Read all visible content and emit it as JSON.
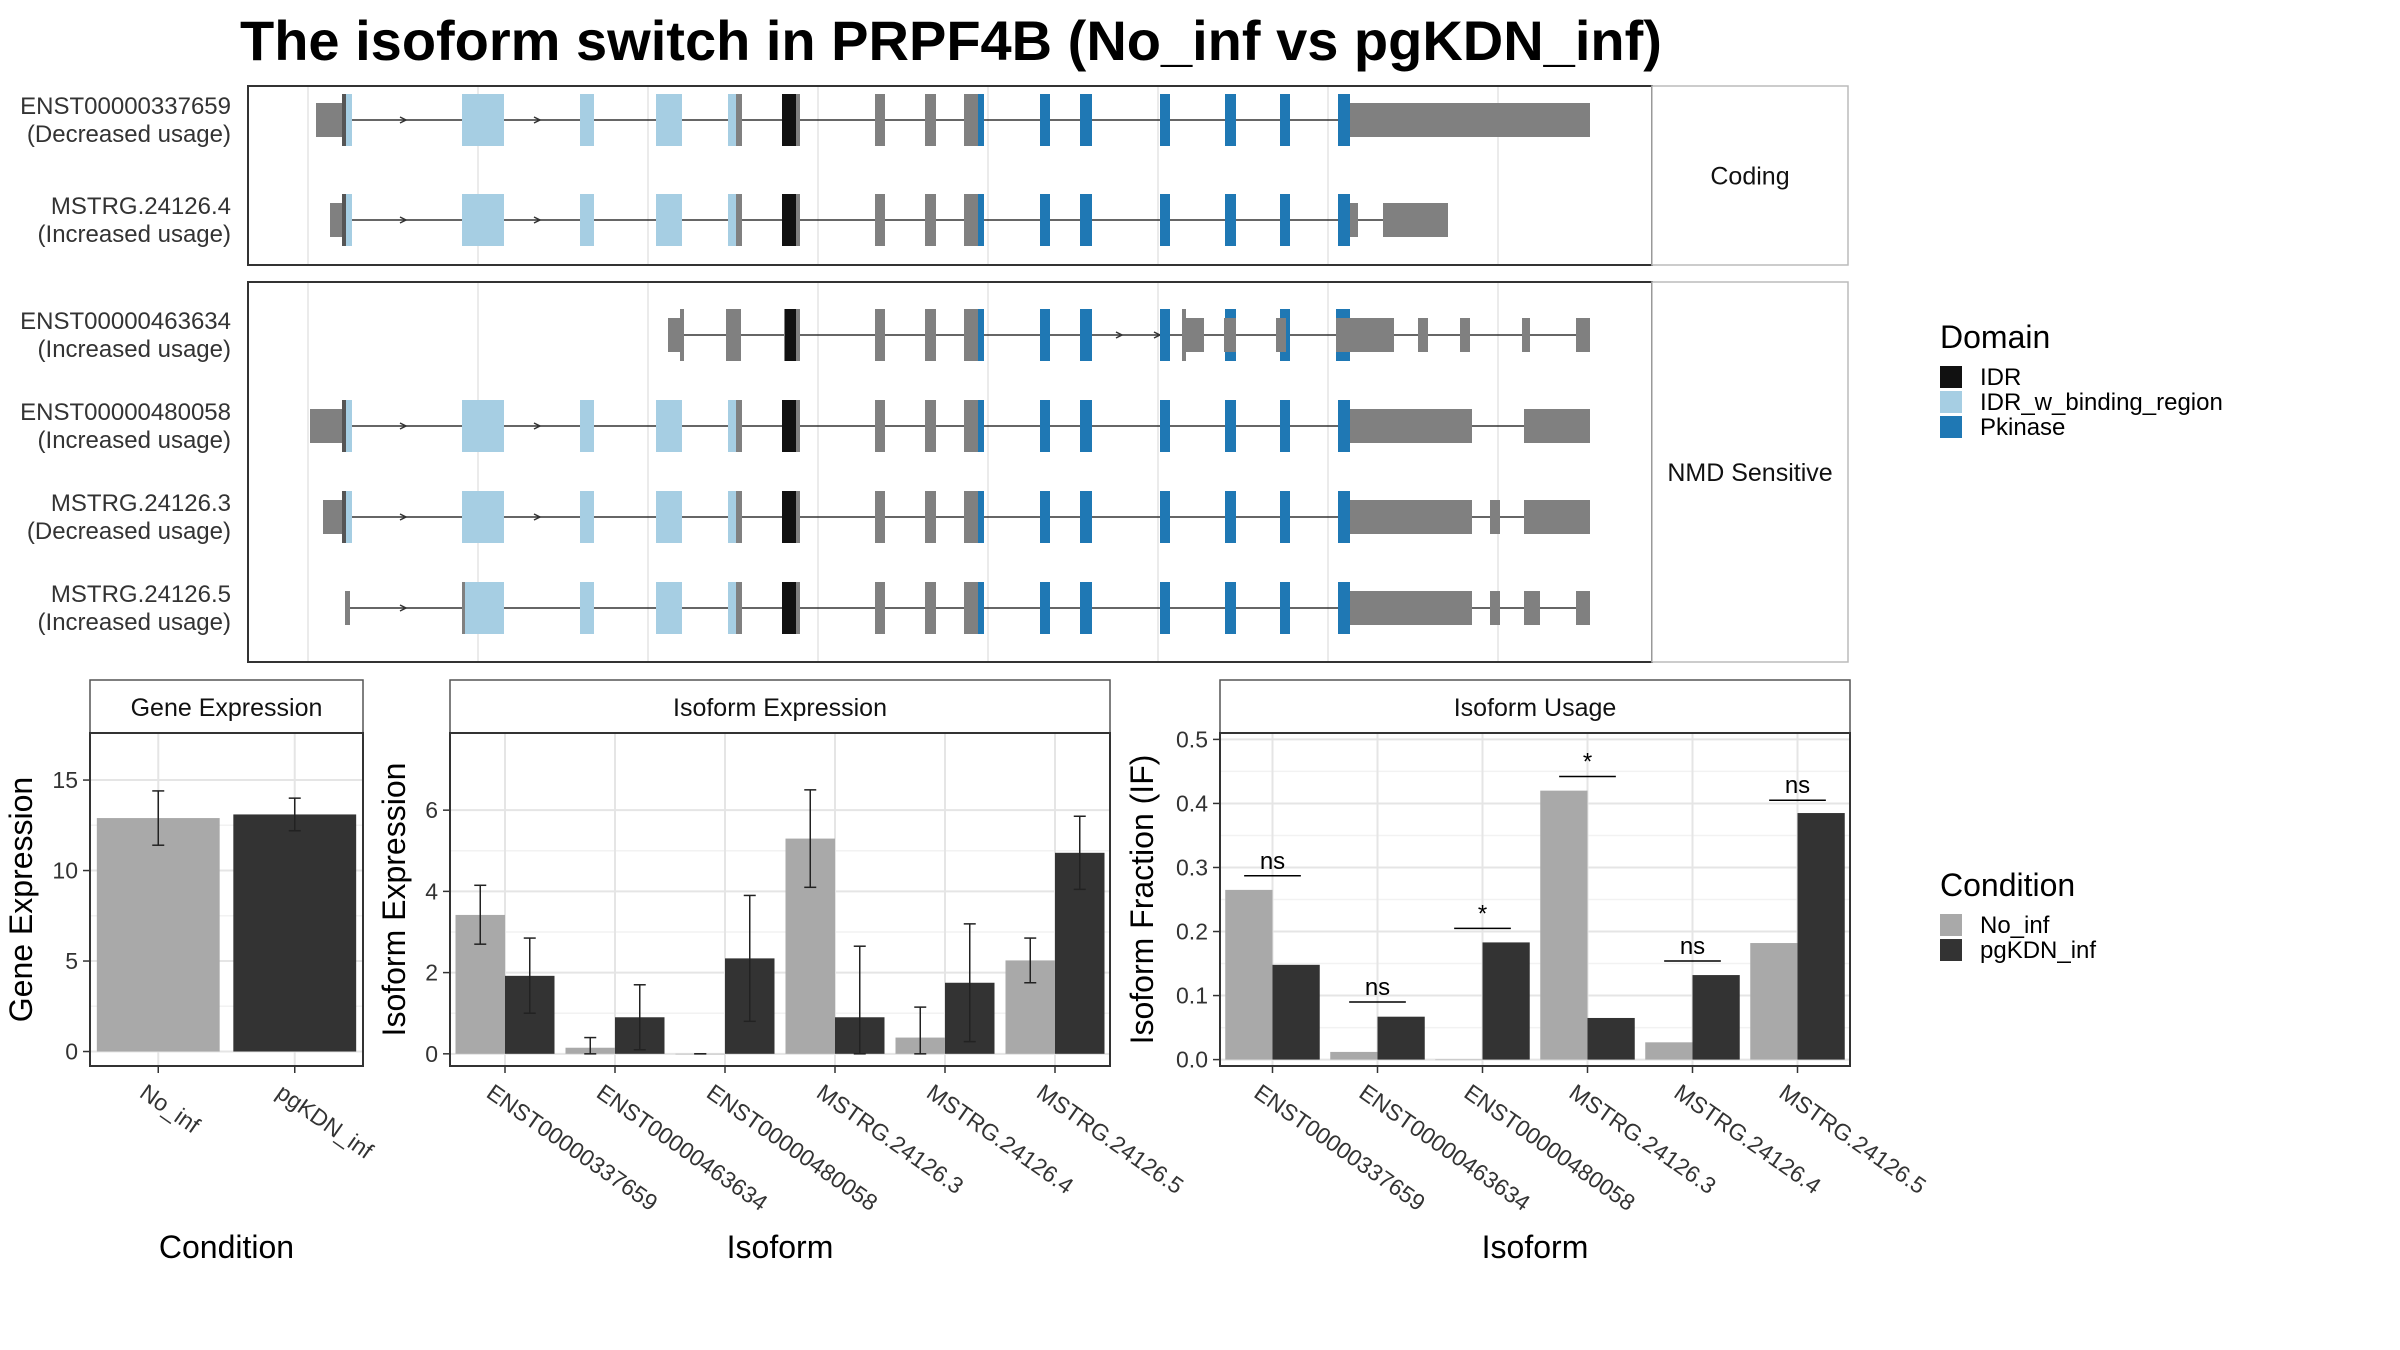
{
  "title": "The isoform switch in PRPF4B (No_inf vs pgKDN_inf)",
  "colors": {
    "IDR": "#111111",
    "IDR_w_binding_region": "#a6cee3",
    "Pkinase": "#1f78b4",
    "exon": "#808080",
    "No_inf": "#a9a9a9",
    "pgKDN_inf": "#333333"
  },
  "gene_structure": {
    "panels": [
      {
        "label": "Coding",
        "isoforms": [
          {
            "id": "ENST00000337659",
            "usage": "(Decreased usage)",
            "variant": "A"
          },
          {
            "id": "MSTRG.24126.4",
            "usage": "(Increased usage)",
            "variant": "B"
          }
        ]
      },
      {
        "label": "NMD Sensitive",
        "isoforms": [
          {
            "id": "ENST00000463634",
            "usage": "(Increased usage)",
            "variant": "C"
          },
          {
            "id": "ENST00000480058",
            "usage": "(Increased usage)",
            "variant": "D"
          },
          {
            "id": "MSTRG.24126.3",
            "usage": "(Decreased usage)",
            "variant": "E"
          },
          {
            "id": "MSTRG.24126.5",
            "usage": "(Increased usage)",
            "variant": "F"
          }
        ]
      }
    ],
    "legend": {
      "title": "Domain",
      "items": [
        {
          "label": "IDR",
          "color": "#111111"
        },
        {
          "label": "IDR_w_binding_region",
          "color": "#a6cee3"
        },
        {
          "label": "Pkinase",
          "color": "#1f78b4"
        }
      ]
    }
  },
  "chart_data": [
    {
      "type": "bar",
      "strip": "Gene Expression",
      "xlabel": "Condition",
      "ylabel": "Gene Expression",
      "ylim": [
        -0.8,
        17.6
      ],
      "yticks": [
        0,
        5,
        10,
        15
      ],
      "categories": [
        "No_inf",
        "pgKDN_inf"
      ],
      "values": [
        12.9,
        13.1
      ],
      "errors": [
        [
          11.4,
          14.4
        ],
        [
          12.2,
          14.0
        ]
      ]
    },
    {
      "type": "bar",
      "strip": "Isoform Expression",
      "xlabel": "Isoform",
      "ylabel": "Isoform Expression",
      "ylim": [
        -0.3,
        7.9
      ],
      "yticks": [
        0,
        2,
        4,
        6
      ],
      "categories": [
        "ENST00000337659",
        "ENST00000463634",
        "ENST00000480058",
        "MSTRG.24126.3",
        "MSTRG.24126.4",
        "MSTRG.24126.5"
      ],
      "series": [
        {
          "name": "No_inf",
          "values": [
            3.42,
            0.15,
            0.0,
            5.3,
            0.4,
            2.3
          ],
          "errors": [
            [
              2.7,
              4.15
            ],
            [
              0.0,
              0.4
            ],
            [
              0.0,
              0.0
            ],
            [
              4.1,
              6.5
            ],
            [
              0.0,
              1.15
            ],
            [
              1.75,
              2.85
            ]
          ]
        },
        {
          "name": "pgKDN_inf",
          "values": [
            1.92,
            0.9,
            2.35,
            0.9,
            1.75,
            4.95
          ],
          "errors": [
            [
              1.0,
              2.85
            ],
            [
              0.1,
              1.7
            ],
            [
              0.8,
              3.9
            ],
            [
              0.0,
              2.65
            ],
            [
              0.3,
              3.2
            ],
            [
              4.05,
              5.85
            ]
          ]
        }
      ]
    },
    {
      "type": "bar",
      "strip": "Isoform Usage",
      "xlabel": "Isoform",
      "ylabel": "Isoform Fraction (IF)",
      "ylim": [
        -0.01,
        0.51
      ],
      "yticks": [
        "0.0",
        "0.1",
        "0.2",
        "0.3",
        "0.4",
        "0.5"
      ],
      "categories": [
        "ENST00000337659",
        "ENST00000463634",
        "ENST00000480058",
        "MSTRG.24126.3",
        "MSTRG.24126.4",
        "MSTRG.24126.5"
      ],
      "series": [
        {
          "name": "No_inf",
          "values": [
            0.265,
            0.012,
            0.0,
            0.42,
            0.027,
            0.182
          ]
        },
        {
          "name": "pgKDN_inf",
          "values": [
            0.148,
            0.067,
            0.183,
            0.065,
            0.132,
            0.385
          ]
        }
      ],
      "significance": [
        "ns",
        "ns",
        "*",
        "*",
        "ns",
        "ns"
      ],
      "significance_level": [
        0.287,
        0.09,
        0.205,
        0.442,
        0.154,
        0.405
      ]
    }
  ],
  "condition_legend": {
    "title": "Condition",
    "items": [
      {
        "label": "No_inf",
        "color": "#a9a9a9"
      },
      {
        "label": "pgKDN_inf",
        "color": "#333333"
      }
    ]
  }
}
